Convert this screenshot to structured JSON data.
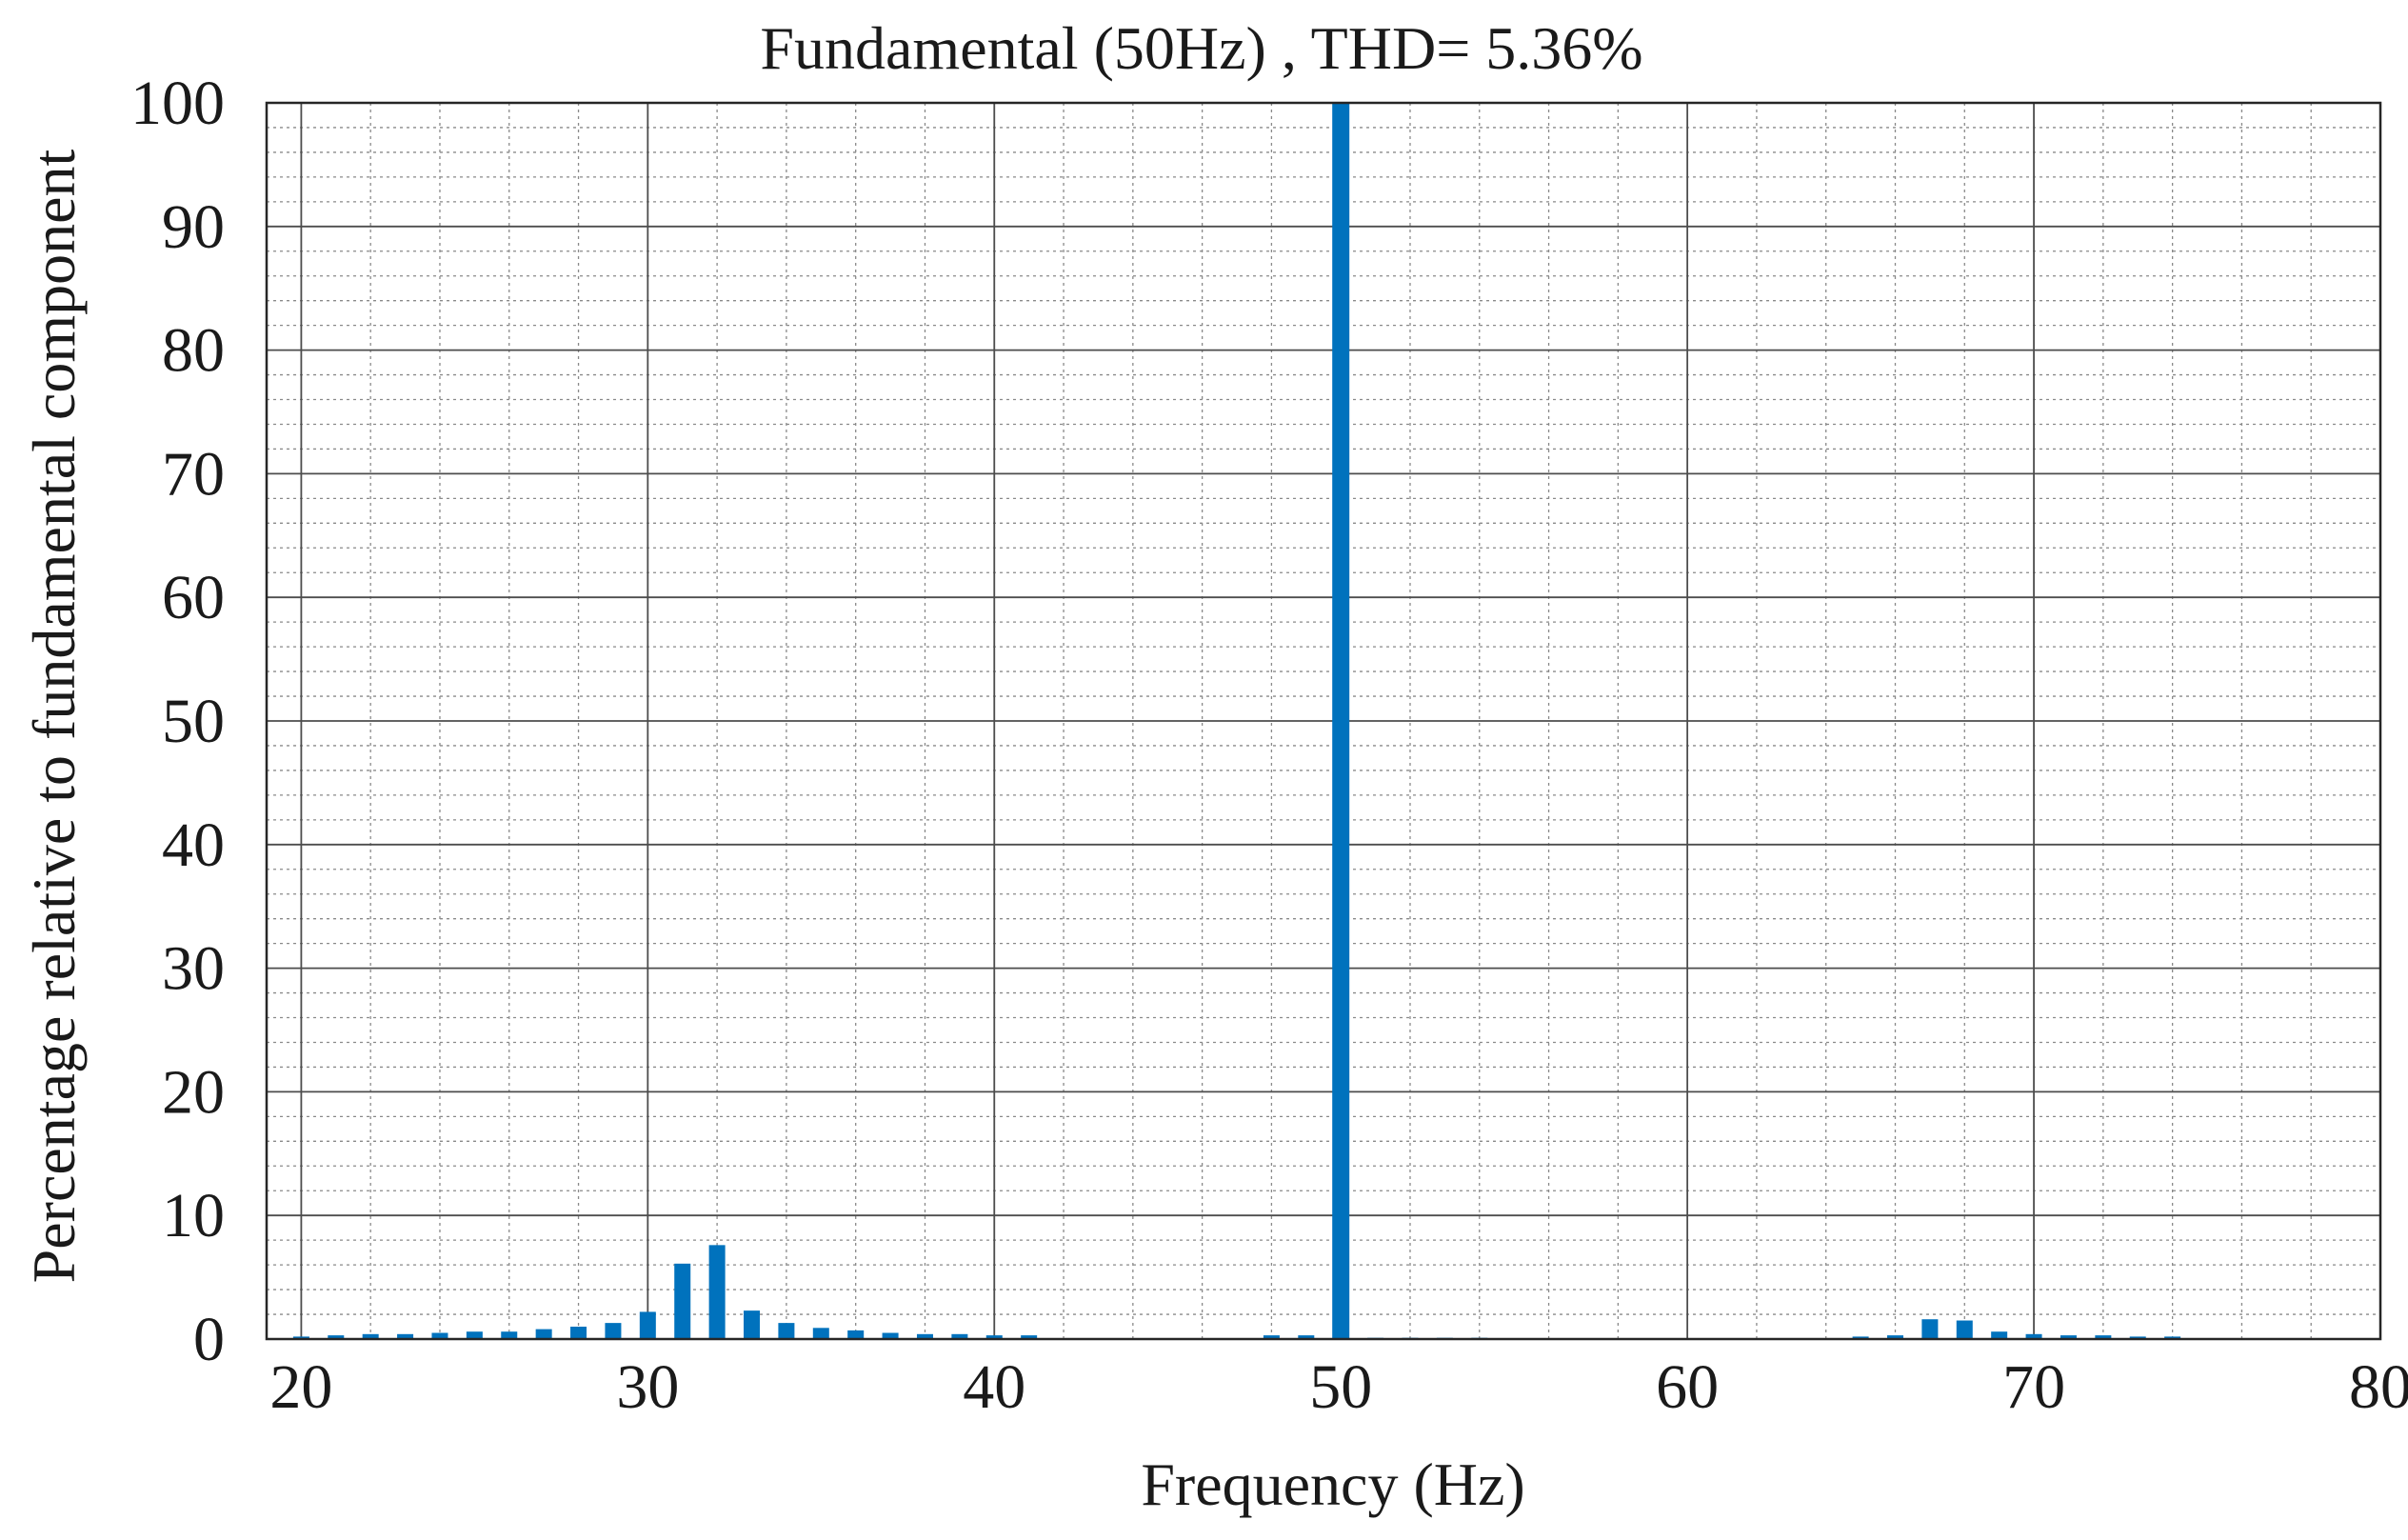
{
  "chart_data": {
    "type": "bar",
    "title": "Fundamental (50Hz)  , THD= 5.36%",
    "xlabel": "Frequency (Hz)",
    "ylabel": "Percentage relative to fundamental component",
    "xlim": [
      19,
      80
    ],
    "ylim": [
      0,
      100
    ],
    "xticks": [
      "20",
      "30",
      "40",
      "50",
      "60",
      "70",
      "80"
    ],
    "yticks": [
      "0",
      "10",
      "20",
      "30",
      "40",
      "50",
      "60",
      "70",
      "80",
      "90",
      "100"
    ],
    "grid": true,
    "minor_grid": true,
    "bar_color": "#0072BD",
    "series": [
      {
        "x": [
          20,
          21,
          22,
          23,
          24,
          25,
          26,
          27,
          28,
          29,
          30,
          31,
          32,
          33,
          34,
          35,
          36,
          37,
          38,
          39,
          40,
          41,
          48,
          49,
          50,
          51,
          52,
          53,
          54,
          65,
          66,
          67,
          68,
          69,
          70,
          71,
          72,
          73,
          74
        ],
        "values": [
          0.2,
          0.3,
          0.4,
          0.4,
          0.5,
          0.6,
          0.6,
          0.8,
          1.0,
          1.3,
          2.2,
          6.1,
          7.6,
          2.3,
          1.3,
          0.9,
          0.7,
          0.5,
          0.4,
          0.4,
          0.3,
          0.3,
          0.3,
          0.3,
          100,
          0.1,
          0.1,
          0.1,
          0.1,
          0.2,
          0.3,
          1.6,
          1.5,
          0.6,
          0.4,
          0.3,
          0.3,
          0.2,
          0.2
        ]
      }
    ]
  }
}
